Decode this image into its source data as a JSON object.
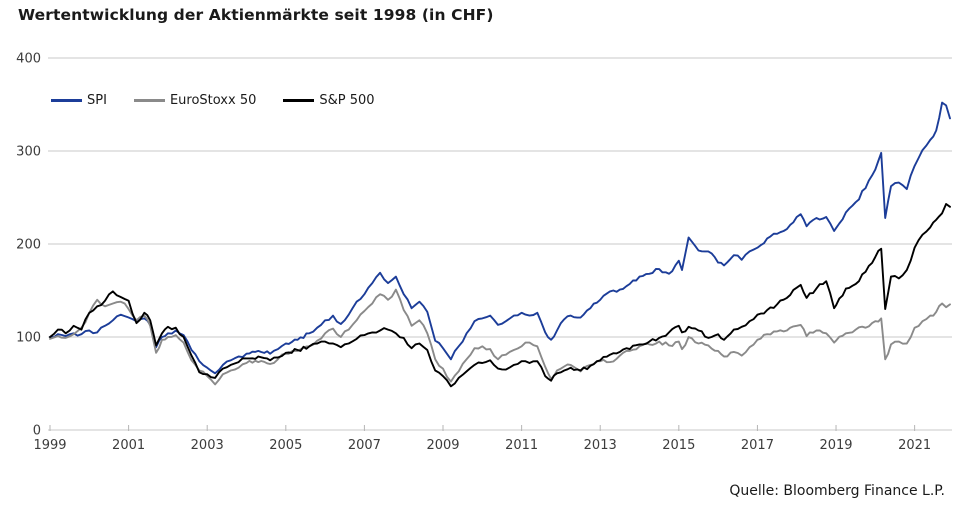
{
  "title": "Wertentwicklung der Aktienmärkte seit 1998 (in CHF)",
  "source": "Quelle: Bloomberg Finance L.P.",
  "axis": {
    "grid_color": "#c9c9c9",
    "tick_color": "#b5b5b5",
    "label_color": "#3c3c3c"
  },
  "chart_data": {
    "type": "line",
    "title": "Wertentwicklung der Aktienmärkte seit 1998 (in CHF)",
    "xlabel": "",
    "ylabel": "",
    "x_range": [
      1999.0,
      2021.9
    ],
    "y_range": [
      0,
      400
    ],
    "y_ticks": [
      0,
      100,
      200,
      300,
      400
    ],
    "x_ticks": [
      1999,
      2001,
      2003,
      2005,
      2007,
      2009,
      2011,
      2013,
      2015,
      2017,
      2019,
      2021
    ],
    "grid": "horizontal",
    "legend_position": "top-left-inside",
    "x": [
      1999.0,
      1999.2,
      1999.4,
      1999.6,
      1999.8,
      2000.0,
      2000.2,
      2000.4,
      2000.6,
      2000.8,
      2001.0,
      2001.2,
      2001.4,
      2001.55,
      2001.7,
      2001.85,
      2002.0,
      2002.2,
      2002.4,
      2002.6,
      2002.8,
      2003.0,
      2003.2,
      2003.4,
      2003.6,
      2003.8,
      2004.0,
      2004.3,
      2004.6,
      2004.8,
      2005.0,
      2005.3,
      2005.6,
      2005.8,
      2006.0,
      2006.2,
      2006.4,
      2006.6,
      2006.8,
      2007.0,
      2007.2,
      2007.4,
      2007.6,
      2007.8,
      2008.0,
      2008.2,
      2008.4,
      2008.6,
      2008.8,
      2009.0,
      2009.2,
      2009.4,
      2009.6,
      2009.8,
      2010.0,
      2010.2,
      2010.4,
      2010.6,
      2010.8,
      2011.0,
      2011.2,
      2011.4,
      2011.6,
      2011.75,
      2011.9,
      2012.0,
      2012.25,
      2012.5,
      2012.75,
      2013.0,
      2013.25,
      2013.5,
      2013.75,
      2014.0,
      2014.25,
      2014.5,
      2014.75,
      2015.0,
      2015.08,
      2015.25,
      2015.5,
      2015.75,
      2016.0,
      2016.15,
      2016.4,
      2016.6,
      2016.8,
      2017.0,
      2017.25,
      2017.5,
      2017.75,
      2018.0,
      2018.1,
      2018.25,
      2018.5,
      2018.75,
      2018.95,
      2019.0,
      2019.25,
      2019.5,
      2019.75,
      2020.0,
      2020.15,
      2020.25,
      2020.4,
      2020.6,
      2020.8,
      2021.0,
      2021.2,
      2021.4,
      2021.55,
      2021.7,
      2021.8,
      2021.9
    ],
    "series": [
      {
        "name": "SPI",
        "color": "#1c3d99",
        "values": [
          100,
          103,
          101,
          104,
          103,
          107,
          105,
          112,
          118,
          124,
          121,
          117,
          120,
          113,
          89,
          100,
          104,
          107,
          102,
          86,
          74,
          67,
          61,
          70,
          75,
          79,
          82,
          85,
          82,
          87,
          93,
          97,
          104,
          110,
          118,
          123,
          114,
          124,
          138,
          146,
          158,
          169,
          158,
          165,
          146,
          131,
          138,
          127,
          96,
          88,
          76,
          90,
          104,
          117,
          120,
          123,
          113,
          117,
          123,
          126,
          123,
          126,
          105,
          97,
          107,
          115,
          123,
          121,
          131,
          140,
          149,
          151,
          157,
          165,
          168,
          173,
          168,
          182,
          172,
          207,
          193,
          192,
          180,
          177,
          188,
          183,
          192,
          196,
          206,
          211,
          216,
          229,
          232,
          219,
          228,
          229,
          214,
          217,
          234,
          245,
          260,
          280,
          298,
          228,
          262,
          266,
          259,
          284,
          301,
          312,
          322,
          352,
          349,
          335
        ]
      },
      {
        "name": "EuroStoxx 50",
        "color": "#8a8a8a",
        "values": [
          98,
          101,
          99,
          103,
          110,
          126,
          140,
          133,
          136,
          138,
          130,
          118,
          123,
          112,
          83,
          97,
          100,
          102,
          94,
          75,
          64,
          58,
          49,
          60,
          64,
          67,
          72,
          73,
          71,
          76,
          82,
          85,
          90,
          96,
          104,
          109,
          100,
          108,
          118,
          128,
          136,
          146,
          140,
          151,
          129,
          112,
          118,
          104,
          76,
          66,
          52,
          63,
          76,
          88,
          90,
          87,
          76,
          81,
          86,
          90,
          94,
          90,
          68,
          55,
          64,
          66,
          70,
          63,
          70,
          74,
          73,
          80,
          85,
          90,
          92,
          95,
          91,
          95,
          87,
          100,
          93,
          91,
          85,
          79,
          84,
          80,
          89,
          97,
          103,
          106,
          107,
          112,
          113,
          101,
          107,
          104,
          94,
          96,
          104,
          108,
          110,
          117,
          120,
          76,
          92,
          95,
          93,
          110,
          117,
          123,
          127,
          136,
          132,
          135
        ]
      },
      {
        "name": "S&P 500",
        "color": "#000000",
        "values": [
          100,
          108,
          104,
          112,
          108,
          126,
          133,
          139,
          149,
          143,
          139,
          115,
          126,
          118,
          91,
          104,
          111,
          110,
          100,
          80,
          62,
          60,
          56,
          66,
          70,
          73,
          77,
          79,
          75,
          78,
          83,
          86,
          90,
          93,
          95,
          93,
          89,
          93,
          98,
          102,
          105,
          107,
          108,
          104,
          99,
          88,
          93,
          86,
          64,
          58,
          47,
          56,
          63,
          70,
          72,
          75,
          66,
          65,
          70,
          74,
          72,
          74,
          58,
          53,
          61,
          62,
          67,
          64,
          69,
          75,
          81,
          84,
          87,
          92,
          95,
          99,
          105,
          112,
          105,
          111,
          107,
          99,
          103,
          97,
          108,
          111,
          117,
          124,
          129,
          135,
          142,
          153,
          156,
          142,
          152,
          160,
          131,
          134,
          152,
          157,
          170,
          186,
          195,
          130,
          165,
          163,
          172,
          196,
          210,
          218,
          226,
          233,
          243,
          240
        ]
      }
    ]
  }
}
